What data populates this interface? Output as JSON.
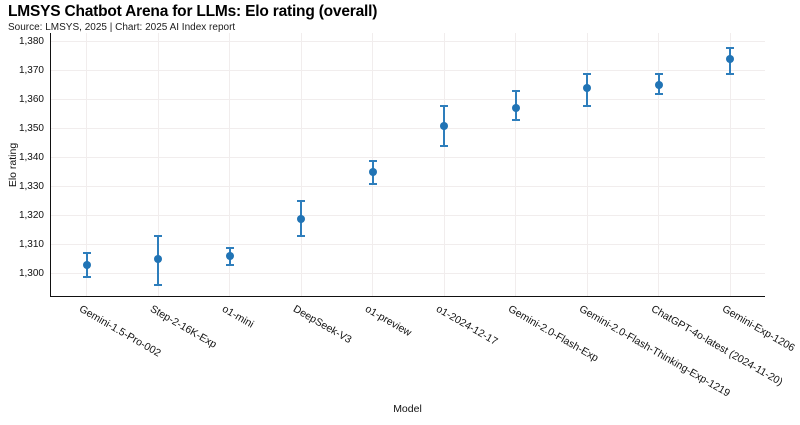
{
  "header": {
    "title": "LMSYS Chatbot Arena for LLMs: Elo rating (overall)",
    "subtitle": "Source: LMSYS, 2025 | Chart: 2025 AI Index report"
  },
  "chart_data": {
    "type": "scatter",
    "title": "LMSYS Chatbot Arena for LLMs: Elo rating (overall)",
    "subtitle": "Source: LMSYS, 2025 | Chart: 2025 AI Index report",
    "xlabel": "Model",
    "ylabel": "Elo rating",
    "ylim": [
      1292,
      1383
    ],
    "yticks": [
      1300,
      1310,
      1320,
      1330,
      1340,
      1350,
      1360,
      1370,
      1380
    ],
    "grid": true,
    "legend": false,
    "error_bars": true,
    "colors": {
      "marker": "#2174b5",
      "error_bar": "#2e7ebc",
      "grid": "#f1eded",
      "axis": "#111111",
      "text": "#111111",
      "background": "#ffffff"
    },
    "categories": [
      "Gemini-1.5-Pro-002",
      "Step-2-16K-Exp",
      "o1-mini",
      "DeepSeek-V3",
      "o1-preview",
      "o1-2024-12-17",
      "Gemini-2.0-Flash-Exp",
      "Gemini-2.0-Flash-Thinking-Exp-1219",
      "ChatGPT-4o-latest (2024-11-20)",
      "Gemini-Exp-1206"
    ],
    "series": [
      {
        "name": "Elo rating (overall)",
        "values": [
          1303,
          1305,
          1306,
          1319,
          1335,
          1351,
          1357,
          1364,
          1365,
          1374
        ],
        "error_plus": [
          4,
          8,
          3,
          6,
          4,
          7,
          6,
          5,
          4,
          4
        ],
        "error_minus": [
          4,
          9,
          3,
          6,
          4,
          7,
          4,
          6,
          3,
          5
        ]
      }
    ]
  }
}
